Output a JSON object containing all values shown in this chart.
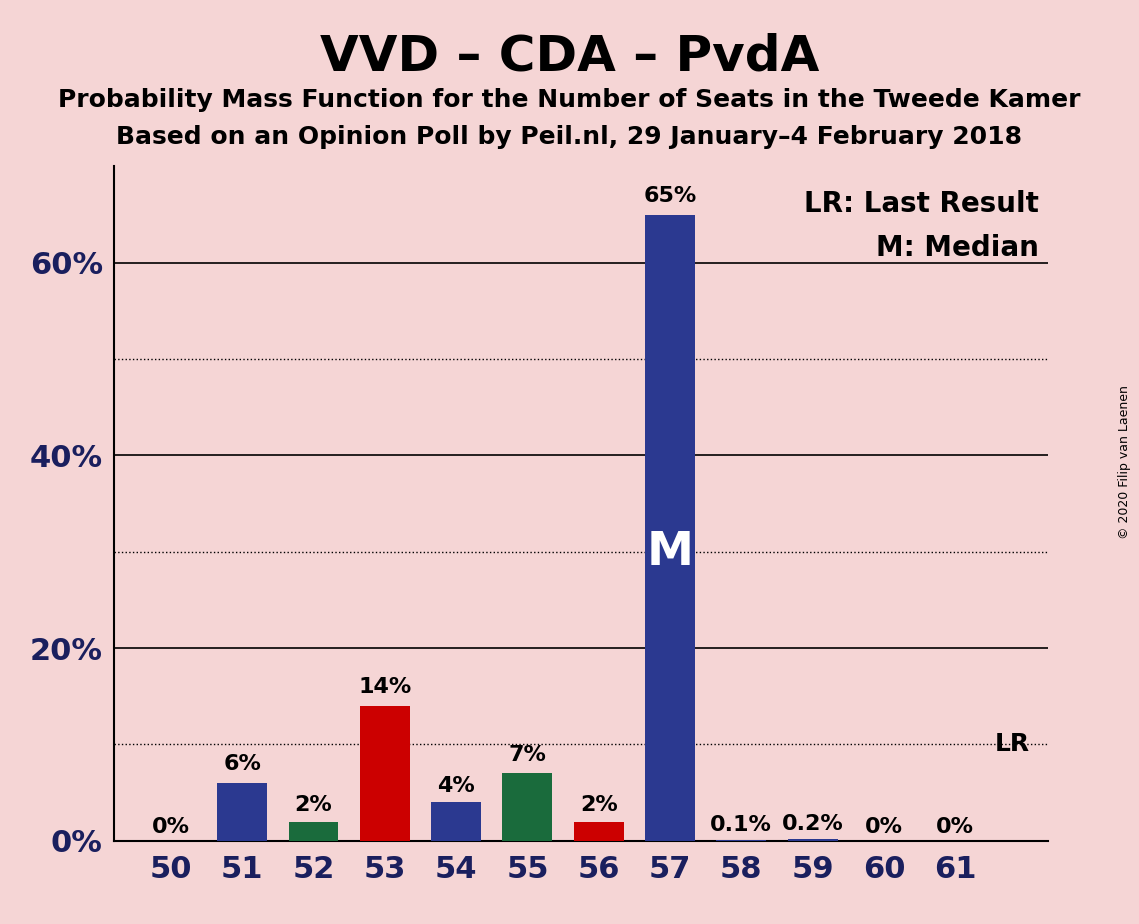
{
  "title": "VVD – CDA – PvdA",
  "subtitle1": "Probability Mass Function for the Number of Seats in the Tweede Kamer",
  "subtitle2": "Based on an Opinion Poll by Peil.nl, 29 January–4 February 2018",
  "copyright": "© 2020 Filip van Laenen",
  "seats": [
    50,
    51,
    52,
    53,
    54,
    55,
    56,
    57,
    58,
    59,
    60,
    61
  ],
  "values": [
    0.0,
    6.0,
    2.0,
    14.0,
    4.0,
    7.0,
    2.0,
    65.0,
    0.1,
    0.2,
    0.0,
    0.0
  ],
  "labels": [
    "0%",
    "6%",
    "2%",
    "14%",
    "4%",
    "7%",
    "2%",
    "65%",
    "0.1%",
    "0.2%",
    "0%",
    "0%"
  ],
  "colors": [
    "#2b3990",
    "#2b3990",
    "#1a6b3c",
    "#cc0000",
    "#2b3990",
    "#1a6b3c",
    "#cc0000",
    "#2b3990",
    "#2b3990",
    "#2b3990",
    "#2b3990",
    "#2b3990"
  ],
  "median_seat": 57,
  "lr_label": "LR",
  "background_color": "#f5d5d5",
  "bar_width": 0.7,
  "ylim": [
    0,
    70
  ],
  "solid_yticks": [
    20,
    40,
    60
  ],
  "dotted_yticks": [
    10,
    30,
    50
  ],
  "ytick_labels_pos": [
    0,
    20,
    40,
    60
  ],
  "ytick_labels_text": [
    "0%",
    "20%",
    "40%",
    "60%"
  ],
  "legend_text1": "LR: Last Result",
  "legend_text2": "M: Median",
  "median_label": "M",
  "title_fontsize": 36,
  "subtitle_fontsize": 18,
  "label_fontsize": 16,
  "tick_fontsize": 22,
  "legend_fontsize": 20,
  "lr_line_value": 10,
  "dark_navy": "#1a1f5e"
}
